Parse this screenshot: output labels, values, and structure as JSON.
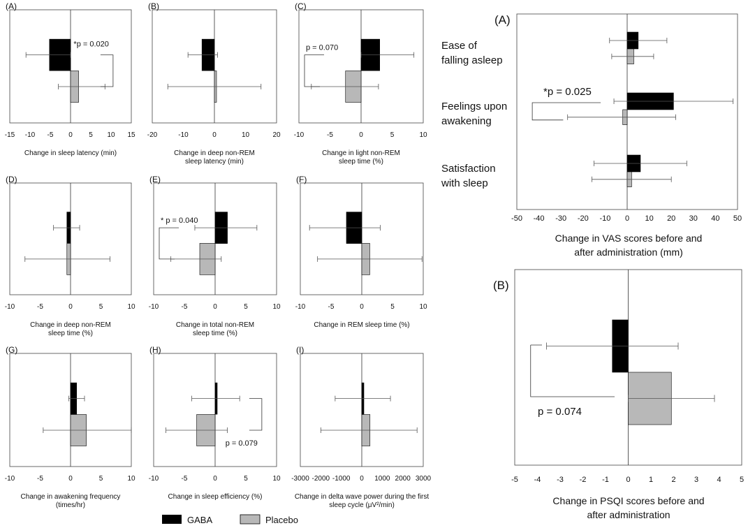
{
  "chart_data": [
    {
      "id": "pA",
      "type": "bar",
      "orientation": "horizontal",
      "label": "(A)",
      "xlim": [
        -15,
        15
      ],
      "ticks": [
        -15,
        -10,
        -5,
        0,
        5,
        10,
        15
      ],
      "xlabel": [
        "Change in sleep latency (min)"
      ],
      "series": [
        {
          "name": "GABA",
          "value": -5.2,
          "err_low": -11.0,
          "err_high": 0.0
        },
        {
          "name": "Placebo",
          "value": 2.0,
          "err_low": -3.0,
          "err_high": 8.5
        }
      ],
      "annotation": "*p = 0.020",
      "annotation_pos": "right"
    },
    {
      "id": "pB",
      "type": "bar",
      "orientation": "horizontal",
      "label": "(B)",
      "xlim": [
        -20,
        20
      ],
      "ticks": [
        -20,
        -10,
        0,
        10,
        20
      ],
      "xlabel": [
        "Change in deep non-REM",
        "sleep latency (min)"
      ],
      "series": [
        {
          "name": "GABA",
          "value": -4.0,
          "err_low": -8.5,
          "err_high": 1.0
        },
        {
          "name": "Placebo",
          "value": 0.0,
          "err_low": -15.0,
          "err_high": 15.0
        }
      ]
    },
    {
      "id": "pC",
      "type": "bar",
      "orientation": "horizontal",
      "label": "(C)",
      "xlim": [
        -10,
        10
      ],
      "ticks": [
        -10,
        -5,
        0,
        5,
        10
      ],
      "xlabel": [
        "Change in light non-REM",
        "sleep time (%)"
      ],
      "series": [
        {
          "name": "GABA",
          "value": 3.0,
          "err_low": 0.0,
          "err_high": 8.5
        },
        {
          "name": "Placebo",
          "value": -2.5,
          "err_low": -8.0,
          "err_high": 2.8
        }
      ],
      "annotation": "p = 0.070",
      "annotation_pos": "left"
    },
    {
      "id": "pD",
      "type": "bar",
      "orientation": "horizontal",
      "label": "(D)",
      "xlim": [
        -10,
        10
      ],
      "ticks": [
        -10,
        -5,
        0,
        5,
        10
      ],
      "xlabel": [
        "Change in deep non-REM",
        "sleep time (%)"
      ],
      "series": [
        {
          "name": "GABA",
          "value": -0.6,
          "err_low": -2.8,
          "err_high": 1.5
        },
        {
          "name": "Placebo",
          "value": -0.6,
          "err_low": -7.5,
          "err_high": 6.5
        }
      ]
    },
    {
      "id": "pE",
      "type": "bar",
      "orientation": "horizontal",
      "label": "(E)",
      "xlim": [
        -10,
        10
      ],
      "ticks": [
        -10,
        -5,
        0,
        5,
        10
      ],
      "xlabel": [
        "Change in total non-REM",
        "sleep time (%)"
      ],
      "series": [
        {
          "name": "GABA",
          "value": 2.0,
          "err_low": -3.3,
          "err_high": 6.8
        },
        {
          "name": "Placebo",
          "value": -2.5,
          "err_low": -7.2,
          "err_high": 1.0
        }
      ],
      "annotation": "* p = 0.040",
      "annotation_pos": "left"
    },
    {
      "id": "pF",
      "type": "bar",
      "orientation": "horizontal",
      "label": "(F)",
      "xlim": [
        -10,
        10
      ],
      "ticks": [
        -10,
        -5,
        0,
        5,
        10
      ],
      "xlabel": [
        "Change in REM sleep time (%)"
      ],
      "series": [
        {
          "name": "GABA",
          "value": -2.5,
          "err_low": -8.5,
          "err_high": 3.0
        },
        {
          "name": "Placebo",
          "value": 1.3,
          "err_low": -7.2,
          "err_high": 9.8
        }
      ]
    },
    {
      "id": "pG",
      "type": "bar",
      "orientation": "horizontal",
      "label": "(G)",
      "xlim": [
        -10,
        10
      ],
      "ticks": [
        -10,
        -5,
        0,
        5,
        10
      ],
      "xlabel": [
        "Change in awakening frequency",
        "(times/hr)"
      ],
      "series": [
        {
          "name": "GABA",
          "value": 1.0,
          "err_low": -0.3,
          "err_high": 2.3
        },
        {
          "name": "Placebo",
          "value": 2.6,
          "err_low": -4.5,
          "err_high": 10.0
        }
      ]
    },
    {
      "id": "pH",
      "type": "bar",
      "orientation": "horizontal",
      "label": "(H)",
      "xlim": [
        -10,
        10
      ],
      "ticks": [
        -10,
        -5,
        0,
        5,
        10
      ],
      "xlabel": [
        "Change in sleep efficiency (%)"
      ],
      "series": [
        {
          "name": "GABA",
          "value": 0.2,
          "err_low": -3.8,
          "err_high": 4.0
        },
        {
          "name": "Placebo",
          "value": -3.0,
          "err_low": -8.0,
          "err_high": 2.0
        }
      ],
      "annotation": "p = 0.079",
      "annotation_pos": "right"
    },
    {
      "id": "pI",
      "type": "bar",
      "orientation": "horizontal",
      "label": "(I)",
      "xlim": [
        -3000,
        3000
      ],
      "ticks": [
        -3000,
        -2000,
        -1000,
        0,
        1000,
        2000,
        3000
      ],
      "xlabel": [
        "Change in delta wave power during the first",
        "sleep cycle (μV²/min)"
      ],
      "series": [
        {
          "name": "GABA",
          "value": 50,
          "err_low": -1300,
          "err_high": 1400
        },
        {
          "name": "Placebo",
          "value": 400,
          "err_low": -2000,
          "err_high": 2700
        }
      ]
    },
    {
      "id": "vas",
      "type": "bar",
      "orientation": "horizontal",
      "label": "(A)",
      "xlim": [
        -50,
        50
      ],
      "ticks": [
        -50,
        -40,
        -30,
        -20,
        -10,
        0,
        10,
        20,
        30,
        40,
        50
      ],
      "xlabel": [
        "Change in VAS scores before and",
        "after administration (mm)"
      ],
      "groups": [
        {
          "label": [
            "Ease of",
            "falling asleep"
          ],
          "series": [
            {
              "name": "GABA",
              "value": 5,
              "err_low": -8,
              "err_high": 18
            },
            {
              "name": "Placebo",
              "value": 3,
              "err_low": -7,
              "err_high": 12
            }
          ]
        },
        {
          "label": [
            "Feelings upon",
            "awakening"
          ],
          "series": [
            {
              "name": "GABA",
              "value": 21,
              "err_low": -6,
              "err_high": 48
            },
            {
              "name": "Placebo",
              "value": -2,
              "err_low": -27,
              "err_high": 22
            }
          ],
          "annotation": "*p = 0.025"
        },
        {
          "label": [
            "Satisfaction",
            "with sleep"
          ],
          "series": [
            {
              "name": "GABA",
              "value": 6,
              "err_low": -15,
              "err_high": 27
            },
            {
              "name": "Placebo",
              "value": 2,
              "err_low": -16,
              "err_high": 20
            }
          ]
        }
      ]
    },
    {
      "id": "psqi",
      "type": "bar",
      "orientation": "horizontal",
      "label": "(B)",
      "xlim": [
        -5,
        5
      ],
      "ticks": [
        -5,
        -4,
        -3,
        -2,
        -1,
        0,
        1,
        2,
        3,
        4,
        5
      ],
      "xlabel": [
        "Change in PSQI scores before and",
        "after administration"
      ],
      "series": [
        {
          "name": "GABA",
          "value": -0.7,
          "err_low": -3.6,
          "err_high": 2.2
        },
        {
          "name": "Placebo",
          "value": 1.9,
          "err_low": 0.0,
          "err_high": 3.8
        }
      ],
      "annotation": "p = 0.074"
    }
  ],
  "legend": [
    {
      "name": "GABA",
      "color": "#000000"
    },
    {
      "name": "Placebo",
      "color": "#b8b8b8"
    }
  ]
}
